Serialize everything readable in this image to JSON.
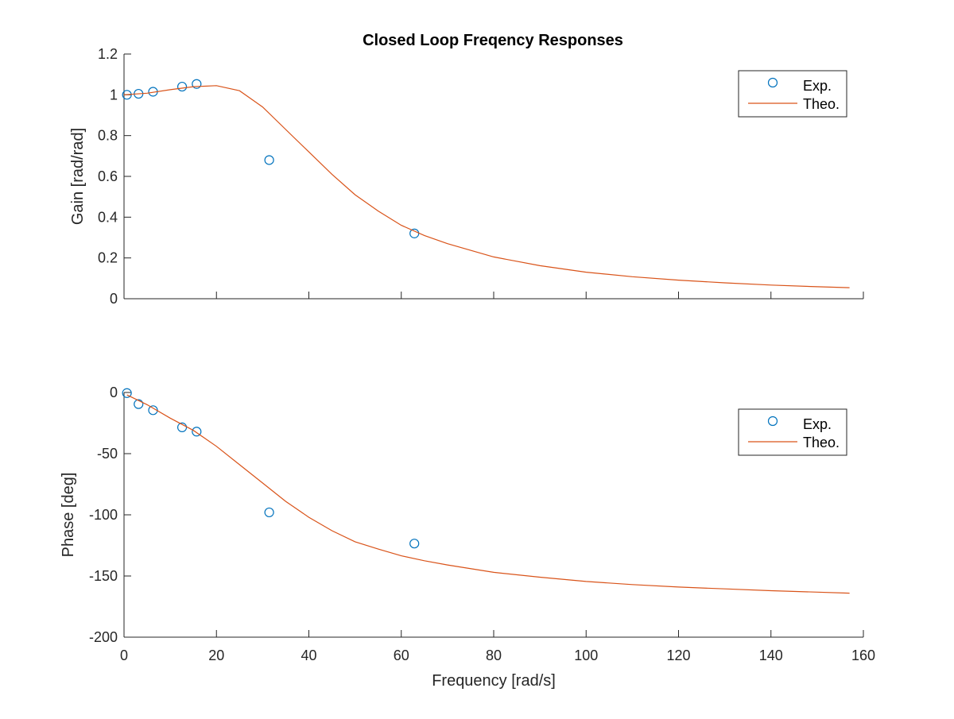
{
  "figure": {
    "title": "Closed Loop Freqency Responses"
  },
  "colors": {
    "experimental": "#0072BD",
    "theoretical": "#D95319",
    "axis": "#262626"
  },
  "chart_data": [
    {
      "type": "line",
      "title": "Closed Loop Freqency Responses",
      "xlabel": "",
      "ylabel": "Gain [rad/rad]",
      "xlim": [
        0,
        160
      ],
      "ylim": [
        0,
        1.2
      ],
      "xticks": [
        0,
        20,
        40,
        60,
        80,
        100,
        120,
        140,
        160
      ],
      "yticks": [
        0,
        0.2,
        0.4,
        0.6,
        0.8,
        1,
        1.2
      ],
      "ytick_labels": [
        "0",
        "0.2",
        "0.4",
        "0.6",
        "0.8",
        "1",
        "1.2"
      ],
      "show_x_tick_labels": false,
      "grid": false,
      "legend": {
        "placement": "top-right",
        "entries": [
          "Exp.",
          "Theo."
        ]
      },
      "series": [
        {
          "name": "Exp.",
          "kind": "scatter",
          "marker": "circle",
          "x": [
            0.63,
            3.14,
            6.28,
            12.57,
            15.71,
            31.42,
            62.83
          ],
          "y": [
            1.0,
            1.005,
            1.015,
            1.04,
            1.053,
            0.68,
            0.32
          ]
        },
        {
          "name": "Theo.",
          "kind": "line",
          "x": [
            0,
            5,
            10,
            15,
            20,
            25,
            30,
            35,
            40,
            45,
            50,
            55,
            60,
            65,
            70,
            80,
            90,
            100,
            110,
            120,
            130,
            140,
            150,
            157
          ],
          "y": [
            1.0,
            1.008,
            1.025,
            1.04,
            1.045,
            1.02,
            0.94,
            0.83,
            0.72,
            0.61,
            0.51,
            0.43,
            0.36,
            0.31,
            0.27,
            0.205,
            0.162,
            0.13,
            0.108,
            0.091,
            0.078,
            0.067,
            0.059,
            0.054
          ]
        }
      ]
    },
    {
      "type": "line",
      "title": "",
      "xlabel": "Frequency [rad/s]",
      "ylabel": "Phase [deg]",
      "xlim": [
        0,
        160
      ],
      "ylim": [
        -200,
        0
      ],
      "xticks": [
        0,
        20,
        40,
        60,
        80,
        100,
        120,
        140,
        160
      ],
      "xtick_labels": [
        "0",
        "20",
        "40",
        "60",
        "80",
        "100",
        "120",
        "140",
        "160"
      ],
      "yticks": [
        -200,
        -150,
        -100,
        -50,
        0
      ],
      "ytick_labels": [
        "-200",
        "-150",
        "-100",
        "-50",
        "0"
      ],
      "show_x_tick_labels": true,
      "grid": false,
      "legend": {
        "placement": "top-right",
        "entries": [
          "Exp.",
          "Theo."
        ]
      },
      "series": [
        {
          "name": "Exp.",
          "kind": "scatter",
          "marker": "circle",
          "x": [
            0.63,
            3.14,
            6.28,
            12.57,
            15.71,
            31.42,
            62.83
          ],
          "y": [
            -0.5,
            -9.5,
            -14.5,
            -28.5,
            -32,
            -98,
            -123.5
          ]
        },
        {
          "name": "Theo.",
          "kind": "line",
          "x": [
            0.63,
            5,
            10,
            15,
            20,
            25,
            30,
            35,
            40,
            45,
            50,
            55,
            60,
            65,
            70,
            80,
            90,
            100,
            110,
            120,
            130,
            140,
            150,
            157
          ],
          "y": [
            -2,
            -10,
            -21,
            -31,
            -44,
            -59,
            -74,
            -89,
            -102,
            -113,
            -122,
            -128,
            -133.5,
            -137.5,
            -141,
            -147,
            -151,
            -154.5,
            -157,
            -159,
            -160.5,
            -162,
            -163.2,
            -164
          ]
        }
      ]
    }
  ]
}
